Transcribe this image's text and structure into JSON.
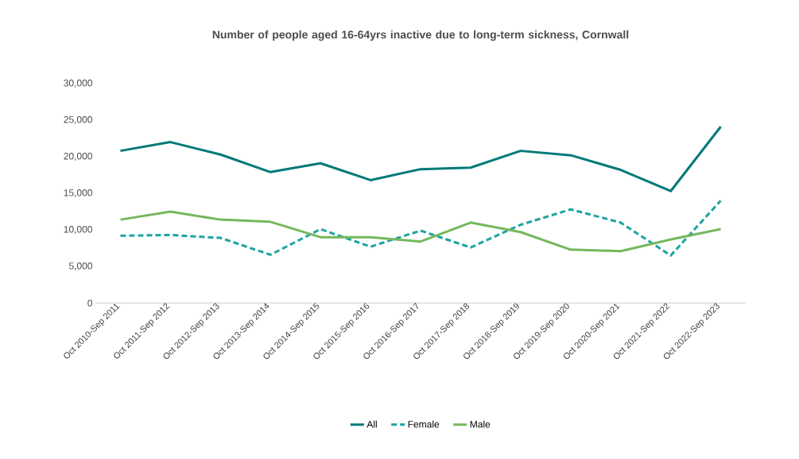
{
  "chart_data": {
    "type": "line",
    "title": "Number of people aged 16-64yrs inactive due to long-term sickness, Cornwall",
    "categories": [
      "Oct 2010-Sep 2011",
      "Oct 2011-Sep 2012",
      "Oct 2012-Sep 2013",
      "Oct 2013-Sep 2014",
      "Oct 2014-Sep 2015",
      "Oct 2015-Sep 2016",
      "Oct 2016-Sep 2017",
      "Oct 2017-Sep 2018",
      "Oct 2018-Sep 2019",
      "Oct 2019-Sep 2020",
      "Oct 2020-Sep 2021",
      "Oct 2021-Sep 2022",
      "Oct 2022-Sep 2023"
    ],
    "series": [
      {
        "name": "All",
        "color": "#007a78",
        "line_style": "solid",
        "values": [
          20800,
          22000,
          20300,
          17900,
          19100,
          16800,
          18300,
          18500,
          20800,
          20200,
          18200,
          15300,
          24100
        ]
      },
      {
        "name": "Female",
        "color": "#1fa3a3",
        "line_style": "dashed",
        "values": [
          9200,
          9300,
          8900,
          6600,
          10100,
          7700,
          9900,
          7600,
          10700,
          12800,
          11000,
          6500,
          14000
        ]
      },
      {
        "name": "Male",
        "color": "#74b85c",
        "line_style": "solid",
        "values": [
          11400,
          12500,
          11400,
          11100,
          9000,
          9000,
          8400,
          11000,
          9700,
          7300,
          7100,
          8700,
          10100
        ]
      }
    ],
    "ylim": [
      0,
      30000
    ],
    "yticks": [
      {
        "value": 0,
        "label": "0"
      },
      {
        "value": 5000,
        "label": "5,000"
      },
      {
        "value": 10000,
        "label": "10,000"
      },
      {
        "value": 15000,
        "label": "15,000"
      },
      {
        "value": 20000,
        "label": "20,000"
      },
      {
        "value": 25000,
        "label": "25,000"
      },
      {
        "value": 30000,
        "label": "30,000"
      }
    ],
    "grid": false,
    "legend": "bottom",
    "marker": "none"
  }
}
